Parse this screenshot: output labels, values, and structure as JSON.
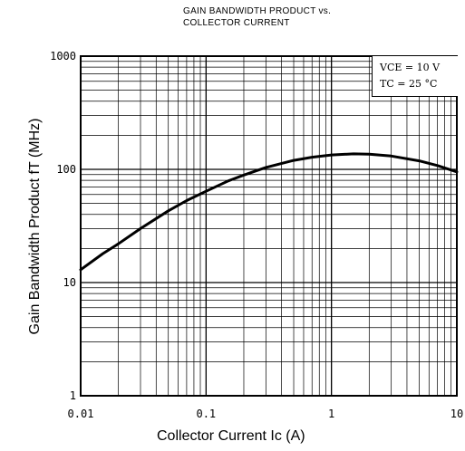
{
  "title": {
    "line1": "GAIN BANDWIDTH PRODUCT vs.",
    "line2": "COLLECTOR CURRENT"
  },
  "conditions": {
    "vce": "VCE = 10  V",
    "tc": "TC = 25 °C"
  },
  "chart_data": {
    "type": "line",
    "title": "GAIN BANDWIDTH PRODUCT vs. COLLECTOR CURRENT",
    "xlabel": "Collector Current  Ic  (A)",
    "ylabel": "Gain Bandwidth Product  fT  (MHz)",
    "xscale": "log",
    "yscale": "log",
    "xlim": [
      0.01,
      10
    ],
    "ylim": [
      1,
      1000
    ],
    "xticks": [
      "0.01",
      "0.1",
      "1",
      "10"
    ],
    "yticks": [
      "1",
      "10",
      "100",
      "1000"
    ],
    "grid": true,
    "series": [
      {
        "x": [
          0.01,
          0.015,
          0.02,
          0.03,
          0.05,
          0.07,
          0.1,
          0.15,
          0.2,
          0.3,
          0.5,
          0.7,
          1.0,
          1.5,
          2.0,
          3.0,
          5.0,
          7.0,
          10.0
        ],
        "y": [
          13,
          18,
          22,
          30,
          43,
          53,
          64,
          79,
          89,
          104,
          120,
          128,
          134,
          137,
          136,
          131,
          119,
          108,
          95
        ]
      }
    ]
  }
}
